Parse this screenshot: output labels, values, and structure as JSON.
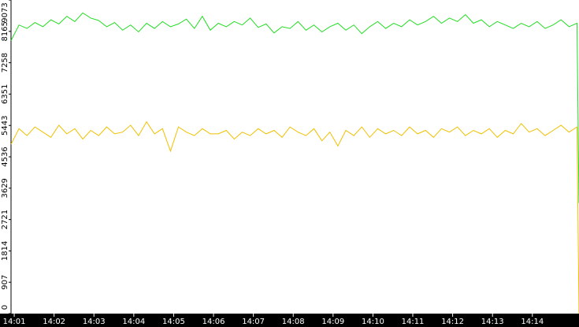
{
  "chart_data": {
    "type": "line",
    "x": [
      0.92,
      1.12,
      1.32,
      1.52,
      1.72,
      1.92,
      2.12,
      2.32,
      2.52,
      2.72,
      2.92,
      3.12,
      3.32,
      3.52,
      3.72,
      3.92,
      4.12,
      4.32,
      4.52,
      4.72,
      4.92,
      5.12,
      5.32,
      5.52,
      5.72,
      5.92,
      6.12,
      6.32,
      6.52,
      6.72,
      6.92,
      7.12,
      7.32,
      7.52,
      7.72,
      7.92,
      8.12,
      8.32,
      8.52,
      8.72,
      8.92,
      9.12,
      9.32,
      9.52,
      9.72,
      9.92,
      10.12,
      10.32,
      10.52,
      10.72,
      10.92,
      11.12,
      11.32,
      11.52,
      11.72,
      11.92,
      12.12,
      12.32,
      12.52,
      12.72,
      12.92,
      13.12,
      13.32,
      13.52,
      13.72,
      13.92,
      14.12,
      14.32,
      14.52,
      14.72,
      14.92,
      15.12,
      15.17
    ],
    "series": [
      {
        "color": "#22dd22",
        "values": [
          7900,
          8350,
          8250,
          8420,
          8300,
          8500,
          8380,
          8600,
          8450,
          8700,
          8550,
          8480,
          8300,
          8420,
          8200,
          8350,
          8150,
          8400,
          8250,
          8450,
          8300,
          8380,
          8520,
          8250,
          8600,
          8200,
          8400,
          8300,
          8450,
          8350,
          8550,
          8280,
          8380,
          8120,
          8300,
          8250,
          8450,
          8200,
          8350,
          8150,
          8300,
          8400,
          8200,
          8350,
          8100,
          8300,
          8450,
          8250,
          8400,
          8300,
          8500,
          8350,
          8450,
          8600,
          8400,
          8550,
          8450,
          8650,
          8400,
          8500,
          8300,
          8450,
          8350,
          8250,
          8400,
          8300,
          8450,
          8250,
          8350,
          8500,
          8300,
          8400,
          3200
        ]
      },
      {
        "color": "#f0c000",
        "values": [
          4900,
          5350,
          5150,
          5400,
          5250,
          5100,
          5450,
          5200,
          5350,
          5050,
          5300,
          5150,
          5400,
          5200,
          5250,
          5450,
          5150,
          5550,
          5200,
          5350,
          4700,
          5400,
          5250,
          5150,
          5350,
          5200,
          5200,
          5300,
          5050,
          5250,
          5150,
          5350,
          5200,
          5300,
          5100,
          5400,
          5250,
          5150,
          5350,
          5000,
          5250,
          4850,
          5300,
          5150,
          5400,
          5100,
          5350,
          5200,
          5300,
          5150,
          5400,
          5200,
          5300,
          5100,
          5350,
          5250,
          5400,
          5150,
          5300,
          5200,
          5350,
          5100,
          5300,
          5200,
          5500,
          5250,
          5350,
          5150,
          5300,
          5450,
          5250,
          5400,
          0
        ]
      }
    ],
    "xlim": [
      0.92,
      15.17
    ],
    "xticks": [
      {
        "value": 1,
        "label": "14:01"
      },
      {
        "value": 2,
        "label": "14:02"
      },
      {
        "value": 3,
        "label": "14:03"
      },
      {
        "value": 4,
        "label": "14:04"
      },
      {
        "value": 5,
        "label": "14:05"
      },
      {
        "value": 6,
        "label": "14:06"
      },
      {
        "value": 7,
        "label": "14:07"
      },
      {
        "value": 8,
        "label": "14:08"
      },
      {
        "value": 9,
        "label": "14:09"
      },
      {
        "value": 10,
        "label": "14:10"
      },
      {
        "value": 11,
        "label": "14:11"
      },
      {
        "value": 12,
        "label": "14:12"
      },
      {
        "value": 13,
        "label": "14:13"
      },
      {
        "value": 14,
        "label": "14:14"
      }
    ],
    "ylim": [
      0,
      9073
    ],
    "yticks": [
      0,
      907,
      1814,
      2721,
      3629,
      4536,
      5443,
      6351,
      7258,
      8165,
      9073
    ]
  }
}
